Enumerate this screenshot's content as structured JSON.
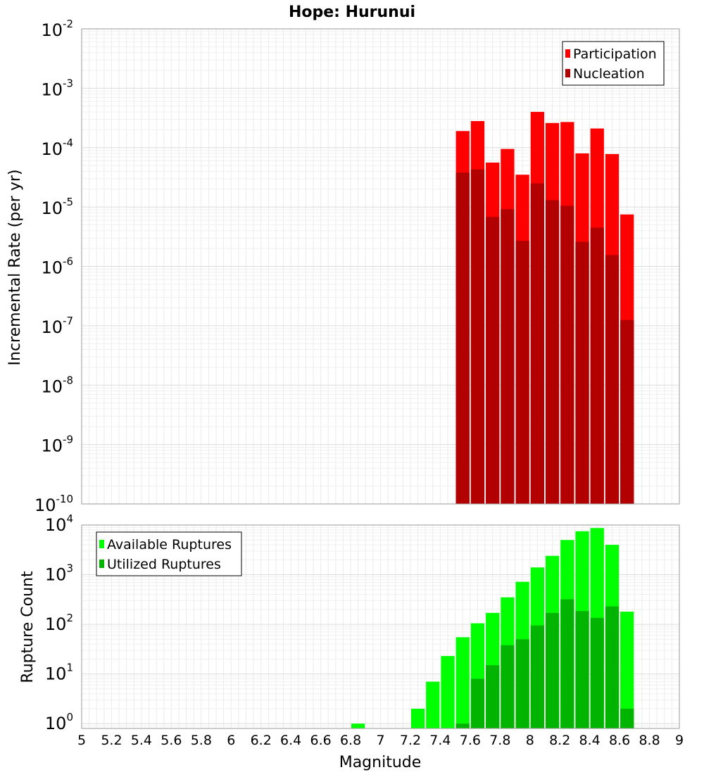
{
  "title": "Hope: Hurunui",
  "chart_data": [
    {
      "type": "bar",
      "panel": "top",
      "ylabel": "Incremental Rate (per yr)",
      "yscale": "log",
      "ylim": [
        1e-10,
        0.01
      ],
      "xlim": [
        5,
        9
      ],
      "bin_width": 0.1,
      "grid": true,
      "legend_position": "top-right",
      "x": [
        7.55,
        7.65,
        7.75,
        7.85,
        7.95,
        8.05,
        8.15,
        8.25,
        8.35,
        8.45,
        8.55,
        8.65
      ],
      "series": [
        {
          "name": "Participation",
          "color": "#ff0000",
          "values": [
            0.00019,
            0.00028,
            5.6e-05,
            9.5e-05,
            3.5e-05,
            0.0004,
            0.00026,
            0.00027,
            8e-05,
            0.00021,
            7.8e-05,
            7.5e-06
          ]
        },
        {
          "name": "Nucleation",
          "color": "#b20000",
          "values": [
            3.8e-05,
            4.3e-05,
            6.8e-06,
            9.2e-06,
            2.7e-06,
            2.5e-05,
            1.3e-05,
            1.05e-05,
            2.6e-06,
            4.5e-06,
            1.55e-06,
            1.25e-07
          ]
        }
      ]
    },
    {
      "type": "bar",
      "panel": "bottom",
      "xlabel": "Magnitude",
      "ylabel": "Rupture Count",
      "yscale": "log",
      "ylim": [
        0.8,
        10000
      ],
      "xlim": [
        5,
        9
      ],
      "bin_width": 0.1,
      "grid": true,
      "legend_position": "top-left",
      "x": [
        6.85,
        7.25,
        7.35,
        7.45,
        7.55,
        7.65,
        7.75,
        7.85,
        7.95,
        8.05,
        8.15,
        8.25,
        8.35,
        8.45,
        8.55,
        8.65
      ],
      "series": [
        {
          "name": "Available Ruptures",
          "color": "#00ff00",
          "values": [
            1,
            2,
            7,
            23,
            55,
            105,
            170,
            350,
            720,
            1400,
            2400,
            5000,
            7500,
            8700,
            4000,
            180
          ]
        },
        {
          "name": "Utilized Ruptures",
          "color": "#00b400",
          "values": [
            null,
            null,
            null,
            null,
            1,
            8,
            15,
            38,
            50,
            95,
            170,
            320,
            185,
            135,
            230,
            2
          ]
        }
      ]
    }
  ],
  "x_ticks": [
    "5",
    "5.2",
    "5.4",
    "5.6",
    "5.8",
    "6",
    "6.2",
    "6.4",
    "6.6",
    "6.8",
    "7",
    "7.2",
    "7.4",
    "7.6",
    "7.8",
    "8",
    "8.2",
    "8.4",
    "8.6",
    "8.8",
    "9"
  ],
  "top_y_ticks": [
    {
      "base": "10",
      "exp": "-2"
    },
    {
      "base": "10",
      "exp": "-3"
    },
    {
      "base": "10",
      "exp": "-4"
    },
    {
      "base": "10",
      "exp": "-5"
    },
    {
      "base": "10",
      "exp": "-6"
    },
    {
      "base": "10",
      "exp": "-7"
    },
    {
      "base": "10",
      "exp": "-8"
    },
    {
      "base": "10",
      "exp": "-9"
    },
    {
      "base": "10",
      "exp": "-10"
    }
  ],
  "bottom_y_ticks": [
    {
      "base": "10",
      "exp": "4"
    },
    {
      "base": "10",
      "exp": "3"
    },
    {
      "base": "10",
      "exp": "2"
    },
    {
      "base": "10",
      "exp": "1"
    },
    {
      "base": "10",
      "exp": "0"
    }
  ]
}
